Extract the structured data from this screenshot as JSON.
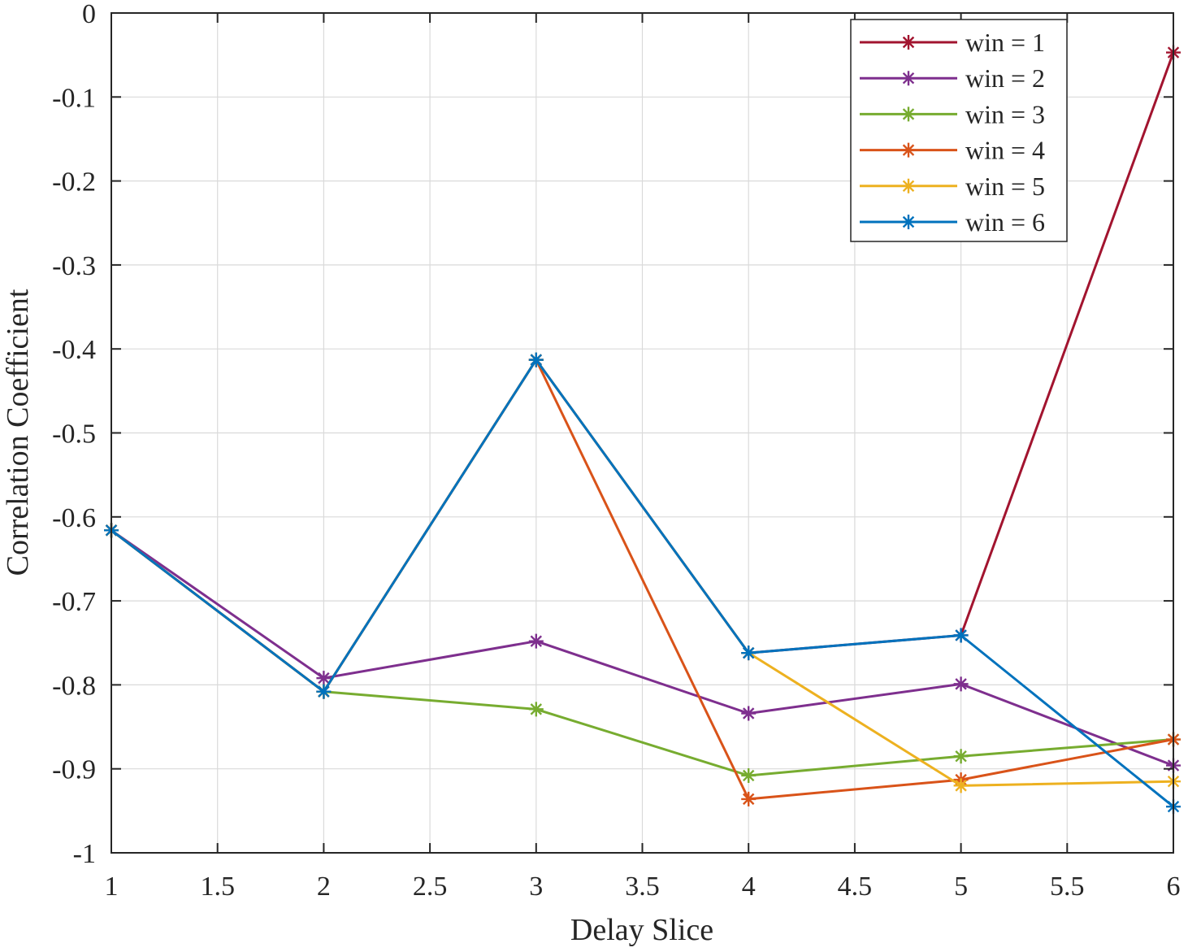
{
  "chart_data": {
    "type": "line",
    "title": "",
    "xlabel": "Delay Slice",
    "ylabel": "Correlation Coefficient",
    "xlim": [
      1,
      6
    ],
    "ylim": [
      -1,
      0
    ],
    "xticks": [
      1,
      1.5,
      2,
      2.5,
      3,
      3.5,
      4,
      4.5,
      5,
      5.5,
      6
    ],
    "xtick_labels": [
      "1",
      "1.5",
      "2",
      "2.5",
      "3",
      "3.5",
      "4",
      "4.5",
      "5",
      "5.5",
      "6"
    ],
    "yticks": [
      0,
      -0.1,
      -0.2,
      -0.3,
      -0.4,
      -0.5,
      -0.6,
      -0.7,
      -0.8,
      -0.9,
      -1
    ],
    "ytick_labels": [
      "0",
      "-0.1",
      "-0.2",
      "-0.3",
      "-0.4",
      "-0.5",
      "-0.6",
      "-0.7",
      "-0.8",
      "-0.9",
      "-1"
    ],
    "grid": true,
    "legend_position": "top-right",
    "marker": "asterisk",
    "x": [
      1,
      2,
      3,
      4,
      5,
      6
    ],
    "series": [
      {
        "name": "win = 1",
        "color": "#A2142F",
        "values": [
          -0.616,
          -0.808,
          -0.413,
          -0.762,
          -0.741,
          -0.047
        ]
      },
      {
        "name": "win = 2",
        "color": "#7E2F8E",
        "values": [
          -0.616,
          -0.792,
          -0.748,
          -0.834,
          -0.799,
          -0.896
        ]
      },
      {
        "name": "win = 3",
        "color": "#77AC30",
        "values": [
          -0.616,
          -0.808,
          -0.829,
          -0.908,
          -0.885,
          -0.865
        ]
      },
      {
        "name": "win = 4",
        "color": "#D95319",
        "values": [
          -0.616,
          -0.808,
          -0.413,
          -0.936,
          -0.913,
          -0.865
        ]
      },
      {
        "name": "win = 5",
        "color": "#EDB120",
        "values": [
          -0.616,
          -0.808,
          -0.413,
          -0.762,
          -0.92,
          -0.915
        ]
      },
      {
        "name": "win = 6",
        "color": "#0072BD",
        "values": [
          -0.616,
          -0.808,
          -0.413,
          -0.762,
          -0.741,
          -0.945
        ]
      }
    ]
  }
}
